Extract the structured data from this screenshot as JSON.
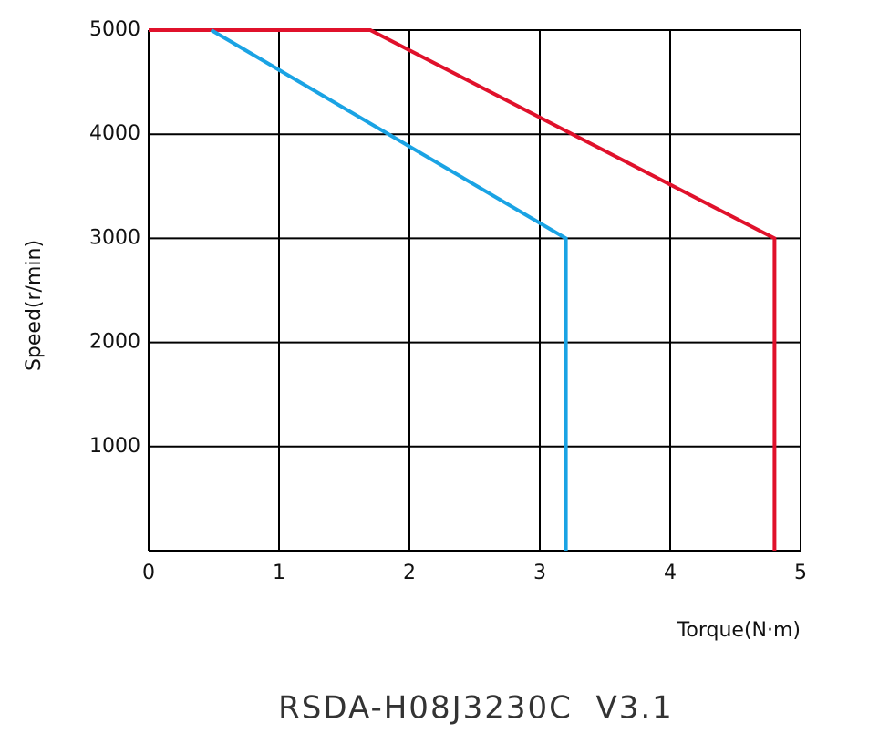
{
  "chart_data": {
    "type": "line",
    "title": "RSDA-H08J3230C  V3.1",
    "x_label": "Torque(N·m)",
    "y_label": "Speed(r/min)",
    "series": [
      {
        "color": "#e0112b",
        "x": [
          0,
          1.7,
          4.8,
          4.8
        ],
        "values": [
          5000,
          5000,
          3000,
          0
        ]
      },
      {
        "color": "#1aa3e4",
        "x": [
          0.48,
          3.2,
          3.2
        ],
        "values": [
          5000,
          3000,
          0
        ]
      }
    ],
    "xlim": [
      0,
      5
    ],
    "xticks": [
      0,
      1,
      2,
      3,
      4,
      5
    ],
    "ylim": [
      0,
      5000
    ],
    "yticks": [
      1000,
      2000,
      3000,
      4000,
      5000
    ],
    "grid": true
  }
}
